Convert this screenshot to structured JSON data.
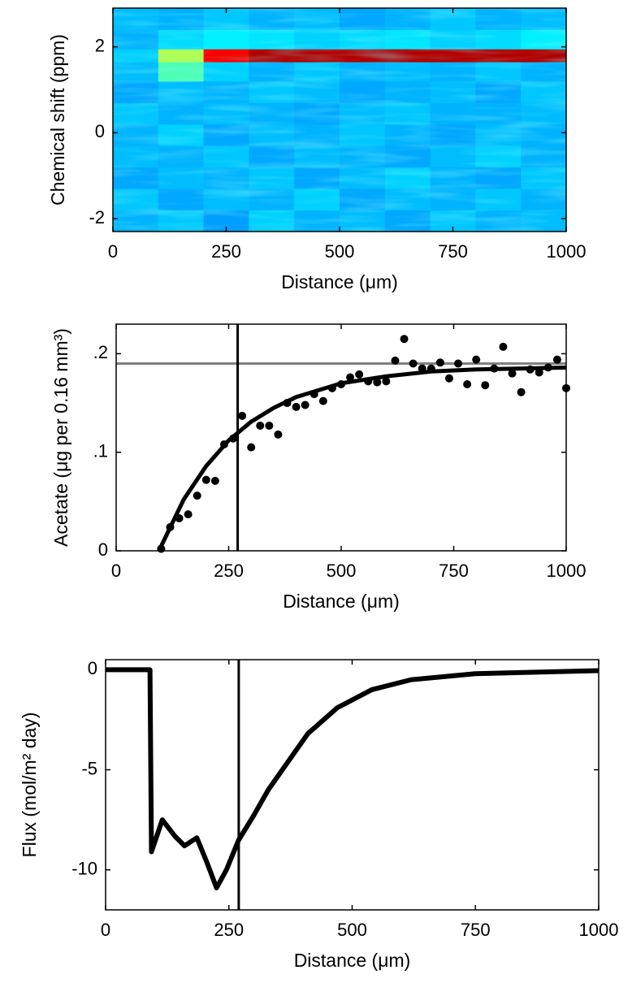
{
  "chart_data": [
    {
      "type": "heatmap",
      "xlabel": "Distance (μm)",
      "ylabel": "Chemical shift (ppm)",
      "xlim": [
        0,
        1000
      ],
      "ylim": [
        -2.3,
        2.9
      ],
      "xticks": [
        0,
        250,
        500,
        750,
        1000
      ],
      "yticks": [
        -2,
        0,
        2
      ],
      "x": [
        0,
        100,
        200,
        300,
        400,
        500,
        600,
        700,
        800,
        900,
        1000
      ],
      "y": [
        -2.3,
        -1.8,
        -1.3,
        -0.8,
        -0.3,
        0.2,
        0.7,
        1.2,
        1.65,
        1.95,
        2.4,
        2.9
      ],
      "z": [
        [
          0.3,
          0.32,
          0.28,
          0.33,
          0.3,
          0.31,
          0.29,
          0.32,
          0.3,
          0.31
        ],
        [
          0.32,
          0.29,
          0.31,
          0.3,
          0.33,
          0.29,
          0.31,
          0.3,
          0.32,
          0.3
        ],
        [
          0.29,
          0.31,
          0.3,
          0.32,
          0.29,
          0.31,
          0.33,
          0.3,
          0.29,
          0.32
        ],
        [
          0.31,
          0.3,
          0.32,
          0.29,
          0.31,
          0.3,
          0.29,
          0.31,
          0.33,
          0.3
        ],
        [
          0.3,
          0.33,
          0.29,
          0.31,
          0.3,
          0.32,
          0.3,
          0.29,
          0.31,
          0.3
        ],
        [
          0.32,
          0.3,
          0.31,
          0.3,
          0.29,
          0.31,
          0.32,
          0.3,
          0.3,
          0.31
        ],
        [
          0.29,
          0.31,
          0.3,
          0.32,
          0.31,
          0.29,
          0.3,
          0.31,
          0.29,
          0.32
        ],
        [
          0.31,
          0.45,
          0.33,
          0.3,
          0.32,
          0.3,
          0.31,
          0.3,
          0.32,
          0.3
        ],
        [
          0.33,
          0.55,
          0.88,
          0.95,
          0.95,
          0.95,
          0.95,
          0.95,
          0.95,
          0.95
        ],
        [
          0.3,
          0.34,
          0.36,
          0.35,
          0.33,
          0.34,
          0.35,
          0.33,
          0.34,
          0.36
        ],
        [
          0.31,
          0.3,
          0.32,
          0.3,
          0.31,
          0.29,
          0.3,
          0.32,
          0.3,
          0.31
        ]
      ]
    },
    {
      "type": "scatter",
      "xlabel": "Distance (μm)",
      "ylabel": "Acetate (μg per 0.16 mm³)",
      "xlim": [
        0,
        1000
      ],
      "ylim": [
        0,
        0.23
      ],
      "xticks": [
        0,
        250,
        500,
        750,
        1000
      ],
      "yticks": [
        0,
        {
          "value": 0.1,
          "label": ".1"
        },
        {
          "value": 0.2,
          "label": ".2"
        }
      ],
      "color": "#000000",
      "x": [
        100,
        120,
        140,
        160,
        180,
        200,
        220,
        240,
        260,
        280,
        300,
        320,
        340,
        360,
        380,
        400,
        420,
        440,
        460,
        480,
        500,
        520,
        540,
        560,
        580,
        600,
        620,
        640,
        660,
        680,
        700,
        720,
        740,
        760,
        780,
        800,
        820,
        840,
        860,
        880,
        900,
        920,
        940,
        960,
        980,
        1000
      ],
      "values": [
        0.002,
        0.024,
        0.033,
        0.037,
        0.056,
        0.072,
        0.071,
        0.108,
        0.114,
        0.137,
        0.105,
        0.127,
        0.127,
        0.118,
        0.15,
        0.146,
        0.148,
        0.159,
        0.152,
        0.165,
        0.169,
        0.176,
        0.179,
        0.172,
        0.171,
        0.172,
        0.193,
        0.215,
        0.19,
        0.185,
        0.185,
        0.191,
        0.175,
        0.19,
        0.169,
        0.194,
        0.168,
        0.185,
        0.207,
        0.18,
        0.161,
        0.184,
        0.181,
        0.186,
        0.194,
        0.165
      ],
      "fit": {
        "x": [
          95,
          150,
          200,
          250,
          300,
          350,
          400,
          500,
          600,
          700,
          800,
          900,
          1000
        ],
        "values": [
          0,
          0.052,
          0.086,
          0.112,
          0.131,
          0.145,
          0.156,
          0.17,
          0.177,
          0.182,
          0.184,
          0.185,
          0.186
        ]
      },
      "reference_lines": [
        {
          "axis": "y",
          "value": 0.19,
          "color": "#808080"
        },
        {
          "axis": "x",
          "value": 270,
          "color": "#000000"
        }
      ]
    },
    {
      "type": "line",
      "xlabel": "Distance (μm)",
      "ylabel": "Flux (mol/m² day)",
      "xlim": [
        0,
        1000
      ],
      "ylim": [
        -12,
        0.5
      ],
      "xticks": [
        0,
        250,
        500,
        750,
        1000
      ],
      "yticks": [
        -10,
        -5,
        0
      ],
      "color": "#000000",
      "x": [
        0,
        90,
        93,
        115,
        140,
        160,
        185,
        205,
        225,
        245,
        270,
        300,
        330,
        370,
        410,
        470,
        540,
        620,
        750,
        1000
      ],
      "values": [
        0,
        0,
        -9.1,
        -7.5,
        -8.3,
        -8.8,
        -8.4,
        -9.6,
        -10.9,
        -10.0,
        -8.5,
        -7.3,
        -6.0,
        -4.6,
        -3.2,
        -1.9,
        -1.0,
        -0.5,
        -0.2,
        -0.05
      ],
      "reference_lines": [
        {
          "axis": "x",
          "value": 270,
          "color": "#000000"
        }
      ]
    }
  ]
}
